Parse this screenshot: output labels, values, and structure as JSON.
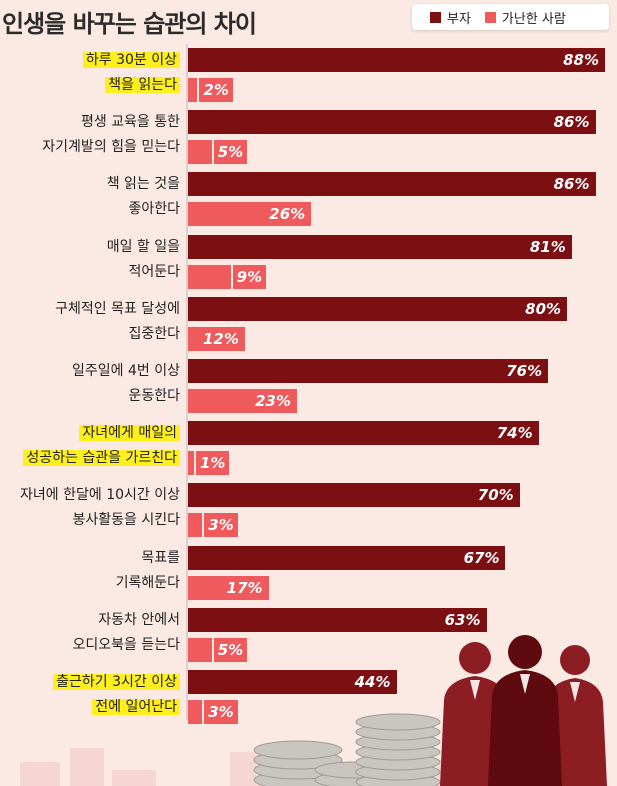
{
  "title": "인생을 바꾸는 습관의 차이",
  "colors": {
    "rich": "#7b0f12",
    "poor": "#ef5a5d",
    "highlight": "#ffef1f",
    "background": "#fbe9e4"
  },
  "chart_data": {
    "type": "bar",
    "orientation": "horizontal",
    "title": "인생을 바꾸는 습관의 차이",
    "categories": [
      [
        "하루 30분 이상",
        "책을 읽는다"
      ],
      [
        "평생 교육을 통한",
        "자기계발의 힘을 믿는다"
      ],
      [
        "책 읽는 것을",
        "좋아한다"
      ],
      [
        "매일 할 일을",
        "적어둔다"
      ],
      [
        "구체적인 목표 달성에",
        "집중한다"
      ],
      [
        "일주일에 4번 이상",
        "운동한다"
      ],
      [
        "자녀에게 매일의",
        "성공하는 습관을 가르친다"
      ],
      [
        "자녀에 한달에 10시간 이상",
        "봉사활동을 시킨다"
      ],
      [
        "목표를",
        "기록해둔다"
      ],
      [
        "자동차 안에서",
        "오디오북을 듣는다"
      ],
      [
        "출근하기 3시간 이상",
        "전에 일어난다"
      ]
    ],
    "highlighted": [
      0,
      6,
      10
    ],
    "series": [
      {
        "name": "부자",
        "values": [
          88,
          86,
          86,
          81,
          80,
          76,
          74,
          70,
          67,
          63,
          44
        ]
      },
      {
        "name": "가난한 사람",
        "values": [
          2,
          5,
          26,
          9,
          12,
          23,
          1,
          3,
          17,
          5,
          3
        ]
      }
    ],
    "value_suffix": "%",
    "xlim": [
      0,
      88
    ],
    "legend_position": "top-right",
    "grid": false
  }
}
